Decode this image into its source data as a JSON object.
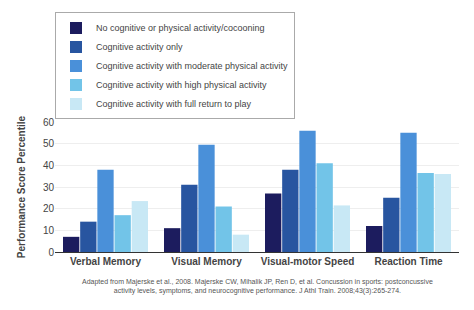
{
  "chart_data": {
    "type": "bar",
    "categories": [
      "Verbal Memory",
      "Visual Memory",
      "Visual-motor Speed",
      "Reaction Time"
    ],
    "series": [
      {
        "name": "No cognitive or physical activity/cocooning",
        "color": "#1c1c5e",
        "values": [
          7,
          11,
          27,
          12
        ]
      },
      {
        "name": "Cognitive activity only",
        "color": "#2855a0",
        "values": [
          14,
          31,
          38,
          25
        ]
      },
      {
        "name": "Cognitive activity with moderate physical activity",
        "color": "#4a90d9",
        "values": [
          38,
          49.5,
          56,
          55
        ]
      },
      {
        "name": "Cognitive activity with high physical activity",
        "color": "#72c4e8",
        "values": [
          17,
          21,
          41,
          36.5
        ]
      },
      {
        "name": "Cognitive activity with full return to play",
        "color": "#c8e8f5",
        "values": [
          23.5,
          8,
          21.5,
          36
        ]
      }
    ],
    "y_label": "Performance Score Percentile",
    "ylim": [
      0,
      60
    ],
    "yticks": [
      0,
      10,
      20,
      30,
      40,
      50,
      60
    ],
    "grid": true,
    "legend": "upper left",
    "annotations": [
      "Adapted from Majerske et al., 2008. Majerske CW, Mihalik JP, Ren D, et al. Concussion in sports: postconcussive\nactivity levels, symptoms, and neurocognitive performance. J Athl Train. 2008;43(3):265-274."
    ]
  }
}
